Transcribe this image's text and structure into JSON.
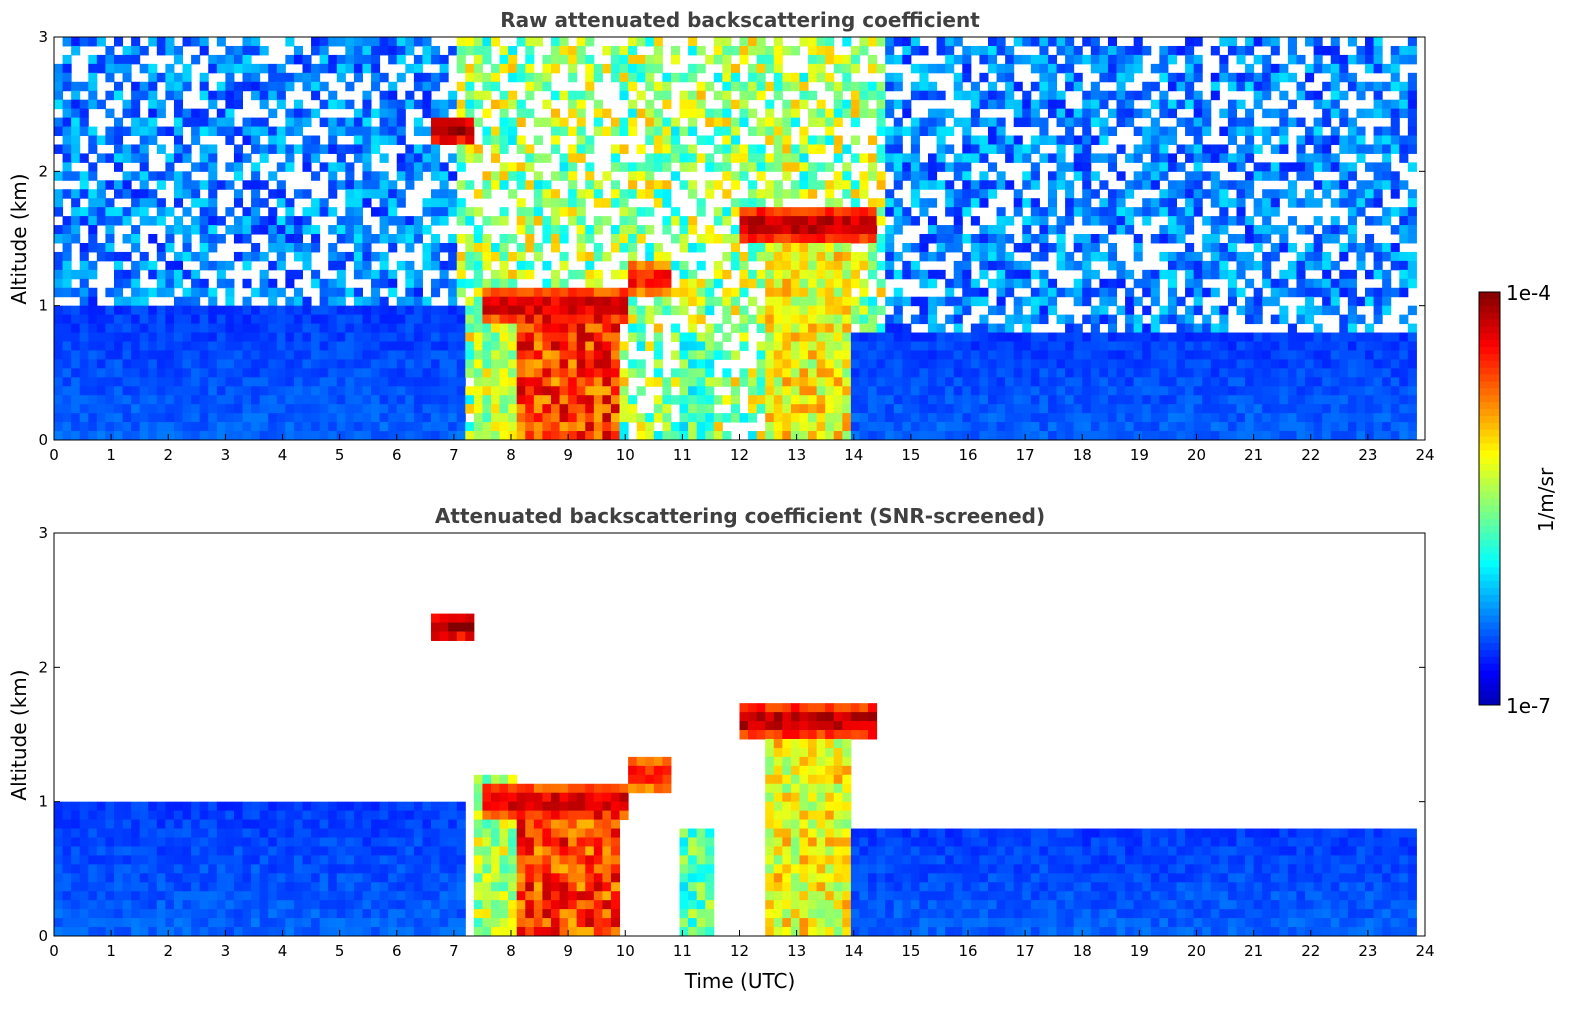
{
  "chart_data": [
    {
      "type": "heatmap",
      "title": "Raw attenuated backscattering coefficient",
      "xlabel": "",
      "ylabel": "Altitude (km)",
      "xlim": [
        0,
        24
      ],
      "ylim": [
        0,
        3
      ],
      "xticks": [
        "0",
        "1",
        "2",
        "3",
        "4",
        "5",
        "6",
        "7",
        "8",
        "9",
        "10",
        "11",
        "12",
        "13",
        "14",
        "15",
        "16",
        "17",
        "18",
        "19",
        "20",
        "21",
        "22",
        "23",
        "24"
      ],
      "yticks": [
        "0",
        "1",
        "2",
        "3"
      ],
      "screened": false,
      "features": [
        {
          "kind": "boundary_layer",
          "t": [
            0,
            7.2
          ],
          "top_km": 1.0,
          "level": 0.18
        },
        {
          "kind": "boundary_layer",
          "t": [
            14.0,
            23.8
          ],
          "top_km": 0.8,
          "level": 0.18
        },
        {
          "kind": "precip_column",
          "t": [
            8.1,
            9.9
          ],
          "top_km": 1.0,
          "level": 0.82
        },
        {
          "kind": "precip_column",
          "t": [
            7.3,
            8.1
          ],
          "top_km": 1.2,
          "level": 0.55
        },
        {
          "kind": "precip_column",
          "t": [
            12.5,
            14.0
          ],
          "top_km": 1.5,
          "level": 0.62
        },
        {
          "kind": "precip_column",
          "t": [
            10.9,
            11.5
          ],
          "top_km": 0.8,
          "level": 0.45
        },
        {
          "kind": "cloud_layer",
          "t": [
            7.5,
            10.0
          ],
          "base_km": 1.0,
          "level": 0.95
        },
        {
          "kind": "cloud_layer",
          "t": [
            10.0,
            10.8
          ],
          "base_km": 1.2,
          "level": 0.9
        },
        {
          "kind": "cloud_layer",
          "t": [
            12.0,
            14.4
          ],
          "base_km": 1.6,
          "level": 0.98
        },
        {
          "kind": "cloud_layer",
          "t": [
            6.6,
            7.4
          ],
          "base_km": 2.3,
          "level": 0.98
        }
      ]
    },
    {
      "type": "heatmap",
      "title": "Attenuated backscattering coefficient (SNR-screened)",
      "xlabel": "Time (UTC)",
      "ylabel": "Altitude (km)",
      "xlim": [
        0,
        24
      ],
      "ylim": [
        0,
        3
      ],
      "xticks": [
        "0",
        "1",
        "2",
        "3",
        "4",
        "5",
        "6",
        "7",
        "8",
        "9",
        "10",
        "11",
        "12",
        "13",
        "14",
        "15",
        "16",
        "17",
        "18",
        "19",
        "20",
        "21",
        "22",
        "23",
        "24"
      ],
      "yticks": [
        "0",
        "1",
        "2",
        "3"
      ],
      "screened": true
    }
  ],
  "colorbar": {
    "label": "1/m/sr",
    "max_label": "1e-4",
    "min_label": "1e-7",
    "scale": "log",
    "range": [
      1e-07,
      0.0001
    ],
    "colormap": "jet"
  }
}
